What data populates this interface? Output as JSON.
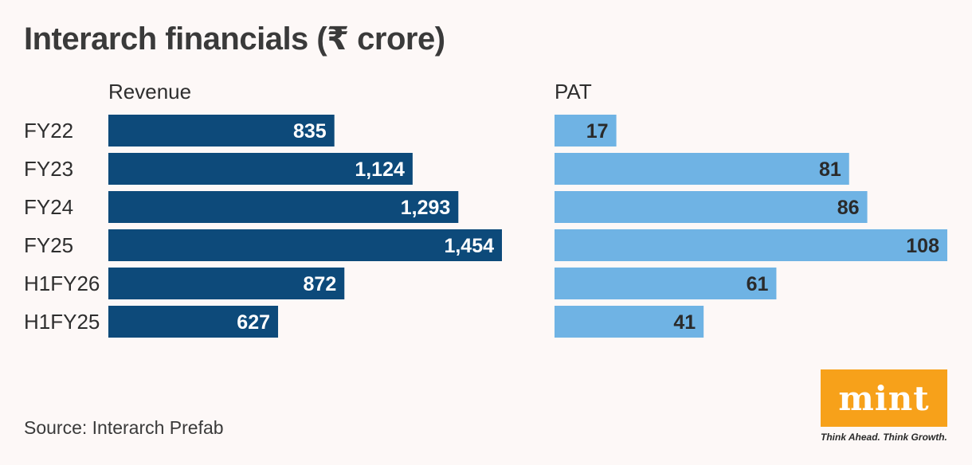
{
  "title": "Interarch financials (₹ crore)",
  "source": "Source: Interarch Prefab",
  "logo": {
    "text": "mint",
    "tagline": "Think Ahead. Think Growth.",
    "color": "#f7a11a"
  },
  "chart_data": {
    "type": "bar",
    "orientation": "horizontal",
    "categories": [
      "FY22",
      "FY23",
      "FY24",
      "FY25",
      "H1FY26",
      "H1FY25"
    ],
    "series": [
      {
        "name": "Revenue",
        "values": [
          835,
          1124,
          1293,
          1454,
          872,
          627
        ],
        "labels": [
          "835",
          "1,124",
          "1,293",
          "1,454",
          "872",
          "627"
        ],
        "color": "#0d4a7a",
        "label_color": "#ffffff",
        "xlim": [
          0,
          1454
        ]
      },
      {
        "name": "PAT",
        "values": [
          17,
          81,
          86,
          108,
          61,
          41
        ],
        "labels": [
          "17",
          "81",
          "86",
          "108",
          "61",
          "41"
        ],
        "color": "#6fb3e4",
        "label_color": "#2a2a2a",
        "xlim": [
          0,
          108
        ]
      }
    ],
    "grid": false,
    "legend": "none"
  }
}
